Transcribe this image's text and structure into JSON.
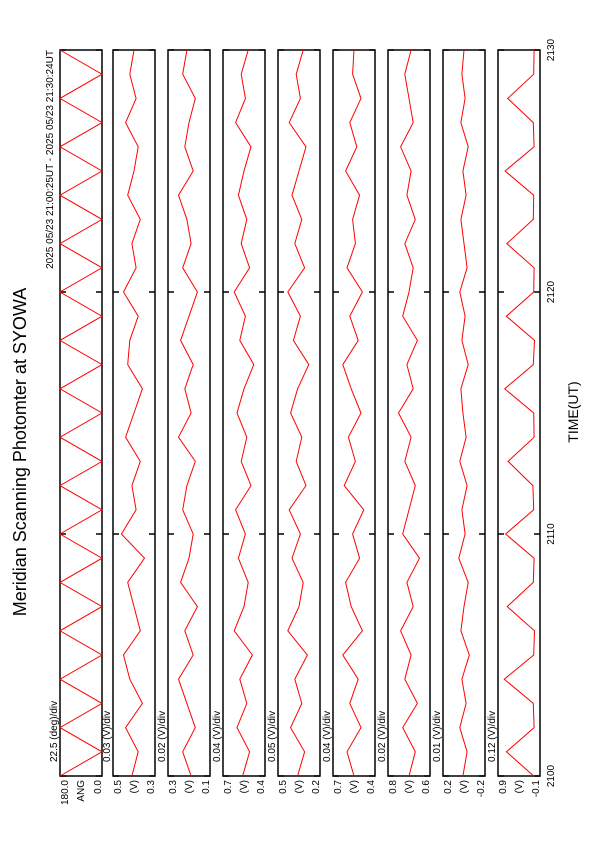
{
  "chart_data": {
    "type": "line",
    "title": "Meridian Scanning Photomter at SYOWA",
    "subtitle": "2025 05/23 21:00:25UT - 2025 05/23 21:30:24UT",
    "xlabel": "TIME(UT)",
    "xlim": [
      2100,
      2130
    ],
    "xticks": [
      2100,
      2110,
      2120,
      2130
    ],
    "x": [
      2100,
      2101,
      2102,
      2103,
      2104,
      2105,
      2106,
      2107,
      2108,
      2109,
      2110,
      2111,
      2112,
      2113,
      2114,
      2115,
      2116,
      2117,
      2118,
      2119,
      2120,
      2121,
      2122,
      2123,
      2124,
      2125,
      2126,
      2127,
      2128,
      2129,
      2130
    ],
    "series": [
      {
        "scale": "22.5 (deg)/div",
        "unit": "ANG",
        "color": "#ff0000",
        "ylim": [
          0,
          180
        ],
        "yticks": [
          {
            "value": 0,
            "label": "0.0"
          },
          {
            "value": 180,
            "label": "180.0"
          }
        ],
        "values": [
          180,
          0,
          180,
          0,
          180,
          0,
          180,
          0,
          180,
          0,
          180,
          0,
          180,
          0,
          180,
          0,
          180,
          0,
          180,
          0,
          180,
          0,
          180,
          0,
          180,
          0,
          180,
          0,
          180,
          0,
          180
        ]
      },
      {
        "scale": "0.03 (V)/div",
        "unit": "(V)",
        "color": "#ff0000",
        "ylim": [
          0.3,
          0.5
        ],
        "yticks": [
          0.3,
          0.5
        ],
        "values": [
          0.41,
          0.38,
          0.44,
          0.36,
          0.42,
          0.45,
          0.37,
          0.4,
          0.43,
          0.35,
          0.46,
          0.39,
          0.41,
          0.37,
          0.44,
          0.4,
          0.36,
          0.43,
          0.42,
          0.38,
          0.45,
          0.39,
          0.41,
          0.37,
          0.43,
          0.4,
          0.38,
          0.44,
          0.39,
          0.42,
          0.4
        ]
      },
      {
        "scale": "0.02 (V)/div",
        "unit": "(V)",
        "color": "#ff0000",
        "ylim": [
          0.1,
          0.3
        ],
        "yticks": [
          0.1,
          0.3
        ],
        "values": [
          0.19,
          0.23,
          0.17,
          0.21,
          0.25,
          0.18,
          0.22,
          0.16,
          0.24,
          0.2,
          0.18,
          0.23,
          0.21,
          0.17,
          0.25,
          0.19,
          0.22,
          0.18,
          0.24,
          0.2,
          0.16,
          0.23,
          0.19,
          0.21,
          0.25,
          0.18,
          0.22,
          0.2,
          0.17,
          0.23,
          0.21
        ]
      },
      {
        "scale": "0.04 (V)/div",
        "unit": "(V)",
        "color": "#ff0000",
        "ylim": [
          0.4,
          0.7
        ],
        "yticks": [
          0.4,
          0.7
        ],
        "values": [
          0.56,
          0.51,
          0.6,
          0.53,
          0.58,
          0.49,
          0.62,
          0.55,
          0.52,
          0.59,
          0.54,
          0.61,
          0.5,
          0.57,
          0.53,
          0.6,
          0.55,
          0.48,
          0.58,
          0.54,
          0.62,
          0.51,
          0.57,
          0.53,
          0.59,
          0.55,
          0.5,
          0.61,
          0.54,
          0.57,
          0.52
        ]
      },
      {
        "scale": "0.05 (V)/div",
        "unit": "(V)",
        "color": "#ff0000",
        "ylim": [
          0.2,
          0.5
        ],
        "yticks": [
          0.2,
          0.5
        ],
        "values": [
          0.36,
          0.31,
          0.41,
          0.33,
          0.38,
          0.29,
          0.43,
          0.35,
          0.32,
          0.4,
          0.34,
          0.42,
          0.3,
          0.37,
          0.33,
          0.41,
          0.36,
          0.28,
          0.39,
          0.34,
          0.43,
          0.31,
          0.38,
          0.33,
          0.4,
          0.35,
          0.3,
          0.42,
          0.34,
          0.37,
          0.32
        ]
      },
      {
        "scale": "0.04 (V)/div",
        "unit": "(V)",
        "color": "#ff0000",
        "ylim": [
          0.4,
          0.7
        ],
        "yticks": [
          0.4,
          0.7
        ],
        "values": [
          0.55,
          0.6,
          0.5,
          0.58,
          0.52,
          0.63,
          0.49,
          0.57,
          0.61,
          0.51,
          0.56,
          0.48,
          0.62,
          0.54,
          0.59,
          0.5,
          0.57,
          0.63,
          0.52,
          0.58,
          0.49,
          0.6,
          0.54,
          0.56,
          0.51,
          0.61,
          0.53,
          0.58,
          0.5,
          0.56,
          0.55
        ]
      },
      {
        "scale": "0.02 (V)/div",
        "unit": "(V)",
        "color": "#ff0000",
        "ylim": [
          0.6,
          0.8
        ],
        "yticks": [
          0.6,
          0.8
        ],
        "values": [
          0.7,
          0.67,
          0.73,
          0.66,
          0.72,
          0.69,
          0.74,
          0.68,
          0.71,
          0.65,
          0.73,
          0.7,
          0.67,
          0.72,
          0.69,
          0.75,
          0.68,
          0.71,
          0.66,
          0.73,
          0.7,
          0.68,
          0.72,
          0.67,
          0.71,
          0.69,
          0.74,
          0.68,
          0.7,
          0.72,
          0.69
        ]
      },
      {
        "scale": "0.01 (V)/div",
        "unit": "(V)",
        "color": "#ff0000",
        "ylim": [
          -0.2,
          0.2
        ],
        "yticks": [
          -0.2,
          0.2
        ],
        "values": [
          0.01,
          -0.03,
          0.04,
          -0.02,
          0.02,
          -0.05,
          0.03,
          0.0,
          -0.04,
          0.05,
          -0.01,
          0.02,
          -0.03,
          0.04,
          -0.02,
          0.01,
          0.03,
          -0.04,
          0.02,
          -0.01,
          0.04,
          -0.03,
          0.0,
          0.03,
          -0.02,
          0.01,
          -0.04,
          0.03,
          -0.01,
          0.02,
          0.0
        ]
      },
      {
        "scale": "0.12 (V)/div",
        "unit": "(V)",
        "color": "#ff0000",
        "ylim": [
          -0.1,
          0.9
        ],
        "yticks": [
          -0.1,
          0.9
        ],
        "values": [
          0.05,
          0.7,
          0.04,
          0.06,
          0.75,
          0.05,
          0.03,
          0.68,
          0.06,
          0.04,
          0.72,
          0.05,
          0.07,
          0.66,
          0.04,
          0.05,
          0.74,
          0.06,
          0.03,
          0.7,
          0.05,
          0.04,
          0.69,
          0.06,
          0.05,
          0.73,
          0.04,
          0.06,
          0.67,
          0.05,
          0.04
        ]
      }
    ]
  }
}
